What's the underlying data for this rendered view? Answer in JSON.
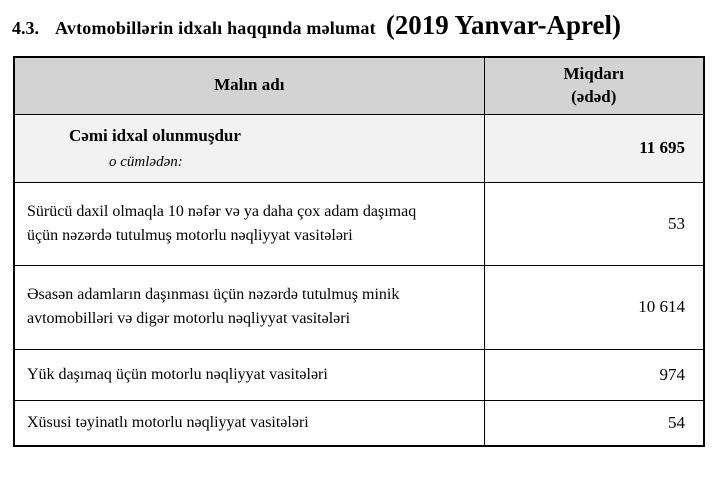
{
  "title": {
    "number": "4.3.",
    "text": "Avtomobillərin idxalı haqqında məlumat",
    "period": "(2019 Yanvar-Aprel)"
  },
  "table": {
    "headers": {
      "name": "Malın adı",
      "quantity_line1": "Miqdarı",
      "quantity_line2": "(ədəd)"
    },
    "total_row": {
      "label": "Cəmi idxal olunmuşdur",
      "sublabel": "o cümlədən:",
      "value": "11 695"
    },
    "rows": [
      {
        "label": "Sürücü daxil olmaqla 10 nəfər və ya daha çox adam daşımaq üçün nəzərdə tutulmuş motorlu nəqliyyat vasitələri",
        "value": "53"
      },
      {
        "label": "Əsasən adamların daşınması üçün nəzərdə tutulmuş minik avtomobilləri və digər motorlu nəqliyyat vasitələri",
        "value": "10 614"
      },
      {
        "label": "Yük daşımaq üçün motorlu nəqliyyat vasitələri",
        "value": "974"
      },
      {
        "label": "Xüsusi təyinatlı motorlu nəqliyyat vasitələri",
        "value": "54"
      }
    ]
  },
  "colors": {
    "header_bg": "#d3d3d3",
    "total_row_bg": "#f2f2f2",
    "border": "#000000"
  },
  "chart_data": {
    "type": "table",
    "title": "Avtomobillərin idxalı haqqında məlumat (2019 Yanvar-Aprel)",
    "columns": [
      "Malın adı",
      "Miqdarı (ədəd)"
    ],
    "categories": [
      "Cəmi idxal olunmuşdur",
      "Sürücü daxil olmaqla 10 nəfər və ya daha çox adam daşımaq üçün nəzərdə tutulmuş motorlu nəqliyyat vasitələri",
      "Əsasən adamların daşınması üçün nəzərdə tutulmuş minik avtomobilləri və digər motorlu nəqliyyat vasitələri",
      "Yük daşımaq üçün motorlu nəqliyyat vasitələri",
      "Xüsusi təyinatlı motorlu nəqliyyat vasitələri"
    ],
    "values": [
      11695,
      53,
      10614,
      974,
      54
    ]
  }
}
